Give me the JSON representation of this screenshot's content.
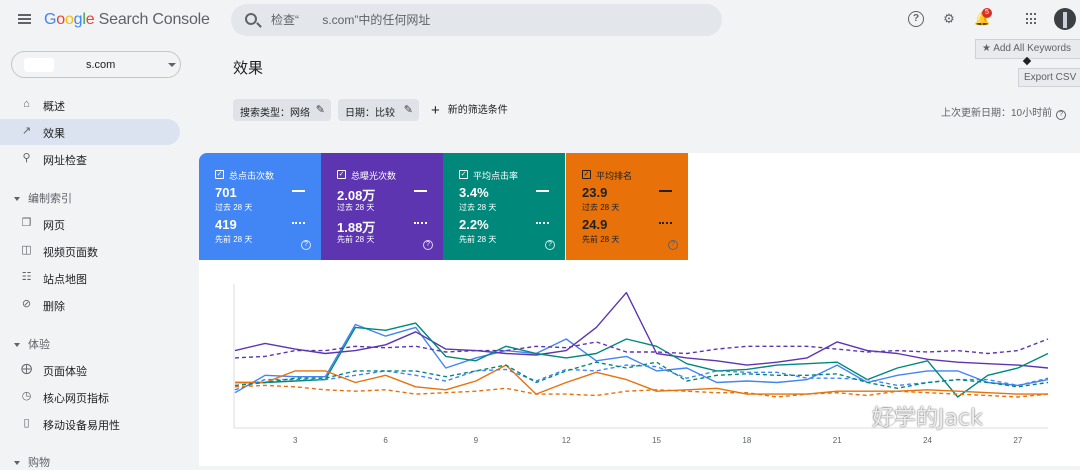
{
  "header": {
    "logo_google": "Google",
    "logo_product": "Search Console",
    "search_placeholder": "检查“       s.com”中的任何网址",
    "notification_count": "5"
  },
  "extension": {
    "add_keywords": "★ Add All Keywords",
    "export_csv": "Export CSV"
  },
  "property": {
    "domain": "s.com"
  },
  "sidebar": {
    "items": [
      {
        "label": "概述",
        "icon": "home-icon"
      },
      {
        "label": "效果",
        "icon": "trending-up-icon"
      },
      {
        "label": "网址检查",
        "icon": "search-icon"
      }
    ],
    "section_index": "编制索引",
    "index_items": [
      {
        "label": "网页",
        "icon": "pages-icon"
      },
      {
        "label": "视频页面数",
        "icon": "video-pages-icon"
      },
      {
        "label": "站点地图",
        "icon": "sitemap-icon"
      },
      {
        "label": "删除",
        "icon": "removal-icon"
      }
    ],
    "section_experience": "体验",
    "experience_items": [
      {
        "label": "页面体验",
        "icon": "page-experience-icon"
      },
      {
        "label": "核心网页指标",
        "icon": "core-web-vitals-icon"
      },
      {
        "label": "移动设备易用性",
        "icon": "mobile-icon"
      }
    ],
    "section_shopping": "购物"
  },
  "main": {
    "title": "效果",
    "filters": {
      "search_type": "搜索类型：网络",
      "date": "日期：比较",
      "new_filter": "新的筛选条件"
    },
    "last_updated": "上次更新日期：10小时前"
  },
  "metrics": [
    {
      "title": "总点击次数",
      "current": "701",
      "current_period": "过去 28 天",
      "previous": "419",
      "previous_period": "先前 28 天",
      "color": "#4285f4"
    },
    {
      "title": "总曝光次数",
      "current": "2.08万",
      "current_period": "过去 28 天",
      "previous": "1.88万",
      "previous_period": "先前 28 天",
      "color": "#5e35b1"
    },
    {
      "title": "平均点击率",
      "current": "3.4%",
      "current_period": "过去 28 天",
      "previous": "2.2%",
      "previous_period": "先前 28 天",
      "color": "#00897b"
    },
    {
      "title": "平均排名",
      "current": "23.9",
      "current_period": "过去 28 天",
      "previous": "24.9",
      "previous_period": "先前 28 天",
      "color": "#e8710a"
    }
  ],
  "chart_data": {
    "type": "line",
    "x": [
      1,
      2,
      3,
      4,
      5,
      6,
      7,
      8,
      9,
      10,
      11,
      12,
      13,
      14,
      15,
      16,
      17,
      18,
      19,
      20,
      21,
      22,
      23,
      24,
      25,
      26,
      27,
      28
    ],
    "x_ticks": [
      3,
      6,
      9,
      12,
      15,
      18,
      21,
      24,
      27
    ],
    "ylim": [
      0,
      100
    ],
    "series": [
      {
        "color": "#4285f4",
        "style": "solid",
        "values": [
          23,
          35,
          34,
          34,
          70,
          62,
          68,
          40,
          47,
          52,
          50,
          60,
          45,
          48,
          38,
          40,
          30,
          31,
          30,
          32,
          42,
          30,
          35,
          38,
          38,
          30,
          28,
          32
        ]
      },
      {
        "color": "#5e35b1",
        "style": "solid",
        "values": [
          52,
          57,
          53,
          50,
          52,
          56,
          65,
          53,
          52,
          50,
          49,
          52,
          68,
          92,
          50,
          47,
          45,
          42,
          44,
          47,
          58,
          52,
          50,
          46,
          44,
          43,
          42,
          40
        ]
      },
      {
        "color": "#00897b",
        "style": "solid",
        "values": [
          30,
          30,
          31,
          32,
          68,
          66,
          71,
          48,
          45,
          55,
          50,
          47,
          50,
          60,
          55,
          43,
          38,
          39,
          42,
          43,
          44,
          32,
          40,
          45,
          20,
          35,
          40,
          50
        ]
      },
      {
        "color": "#e8710a",
        "style": "solid",
        "values": [
          30,
          30,
          38,
          38,
          30,
          35,
          27,
          25,
          31,
          42,
          22,
          30,
          37,
          32,
          24,
          25,
          26,
          22,
          22,
          22,
          24,
          24,
          24,
          25,
          24,
          23,
          22,
          22
        ]
      },
      {
        "color": "#4285f4",
        "style": "dashed",
        "values": [
          25,
          32,
          32,
          32,
          35,
          38,
          35,
          31,
          38,
          39,
          31,
          39,
          38,
          42,
          41,
          33,
          38,
          37,
          37,
          33,
          33,
          32,
          28,
          30,
          32,
          32,
          28,
          33
        ]
      },
      {
        "color": "#5e35b1",
        "style": "dashed",
        "values": [
          47,
          48,
          52,
          52,
          55,
          54,
          55,
          51,
          52,
          52,
          55,
          54,
          58,
          51,
          51,
          50,
          53,
          55,
          55,
          55,
          53,
          51,
          52,
          51,
          52,
          50,
          52,
          60
        ]
      },
      {
        "color": "#00897b",
        "style": "dashed",
        "values": [
          28,
          30,
          33,
          33,
          38,
          38,
          38,
          34,
          38,
          42,
          30,
          38,
          44,
          40,
          44,
          31,
          35,
          36,
          35,
          35,
          36,
          30,
          26,
          30,
          32,
          30,
          27,
          30
        ]
      },
      {
        "color": "#e8710a",
        "style": "dashed",
        "values": [
          27,
          28,
          27,
          25,
          24,
          25,
          22,
          23,
          24,
          26,
          22,
          22,
          21,
          24,
          25,
          24,
          23,
          23,
          20,
          22,
          23,
          21,
          24,
          23,
          22,
          21,
          20,
          22
        ]
      }
    ]
  },
  "watermark": "好学的Jack"
}
